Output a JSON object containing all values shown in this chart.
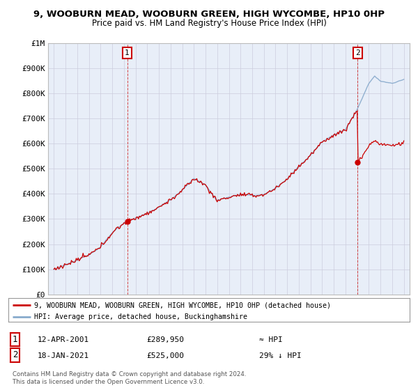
{
  "title": "9, WOOBURN MEAD, WOOBURN GREEN, HIGH WYCOMBE, HP10 0HP",
  "subtitle": "Price paid vs. HM Land Registry's House Price Index (HPI)",
  "legend_line1": "9, WOOBURN MEAD, WOOBURN GREEN, HIGH WYCOMBE, HP10 0HP (detached house)",
  "legend_line2": "HPI: Average price, detached house, Buckinghamshire",
  "annotation1_label": "1",
  "annotation1_date": "12-APR-2001",
  "annotation1_price": "£289,950",
  "annotation1_hpi": "≈ HPI",
  "annotation2_label": "2",
  "annotation2_date": "18-JAN-2021",
  "annotation2_price": "£525,000",
  "annotation2_hpi": "29% ↓ HPI",
  "footer": "Contains HM Land Registry data © Crown copyright and database right 2024.\nThis data is licensed under the Open Government Licence v3.0.",
  "price_color": "#cc0000",
  "hpi_color": "#88aacc",
  "chart_bg": "#e8eef8",
  "background_color": "#ffffff",
  "grid_color": "#ccccdd",
  "point1_x": 2001.28,
  "point1_y": 289950,
  "point2_x": 2021.05,
  "point2_y": 525000,
  "ylim": [
    0,
    1000000
  ],
  "xlim": [
    1994.5,
    2025.5
  ],
  "yticks": [
    0,
    100000,
    200000,
    300000,
    400000,
    500000,
    600000,
    700000,
    800000,
    900000,
    1000000
  ],
  "ytick_labels": [
    "£0",
    "£100K",
    "£200K",
    "£300K",
    "£400K",
    "£500K",
    "£600K",
    "£700K",
    "£800K",
    "£900K",
    "£1M"
  ],
  "xticks": [
    1995,
    1996,
    1997,
    1998,
    1999,
    2000,
    2001,
    2002,
    2003,
    2004,
    2005,
    2006,
    2007,
    2008,
    2009,
    2010,
    2011,
    2012,
    2013,
    2014,
    2015,
    2016,
    2017,
    2018,
    2019,
    2020,
    2021,
    2022,
    2023,
    2024,
    2025
  ]
}
